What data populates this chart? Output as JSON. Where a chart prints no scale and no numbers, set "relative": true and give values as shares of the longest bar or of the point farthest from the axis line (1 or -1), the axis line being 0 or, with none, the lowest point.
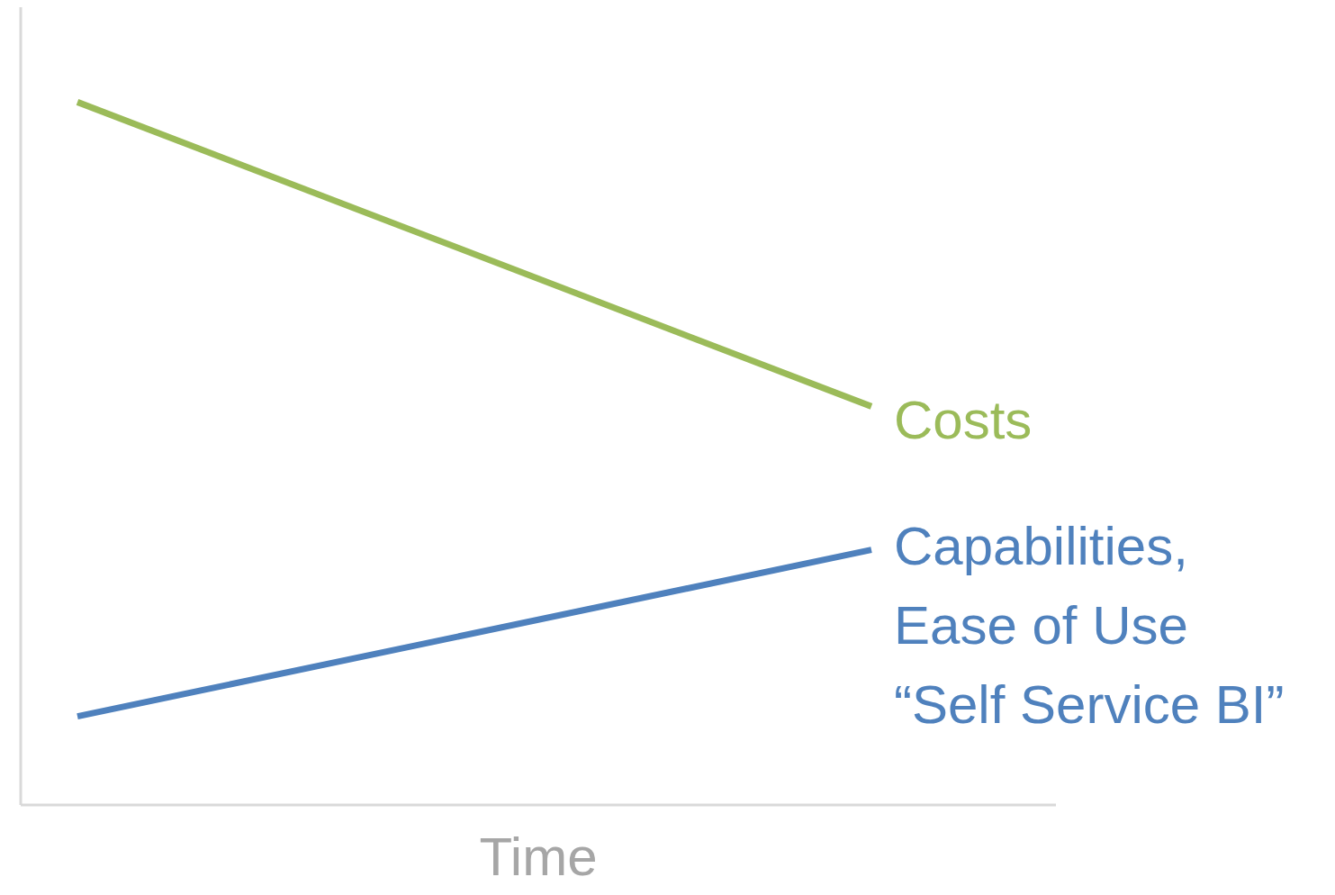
{
  "chart_data": {
    "type": "line",
    "relative": true,
    "xlabel": "Time",
    "categories": [
      null,
      null
    ],
    "legend": false,
    "marker": "none",
    "line_style": "solid",
    "series": [
      {
        "name": "Costs",
        "color": "#9bbb59",
        "values": [
          1,
          0.567
        ]
      },
      {
        "name": "Capabilities,\nEase of Use\n“Self Service BI”",
        "color": "#4f81bd",
        "values": [
          0.126,
          0.363
        ]
      }
    ]
  }
}
